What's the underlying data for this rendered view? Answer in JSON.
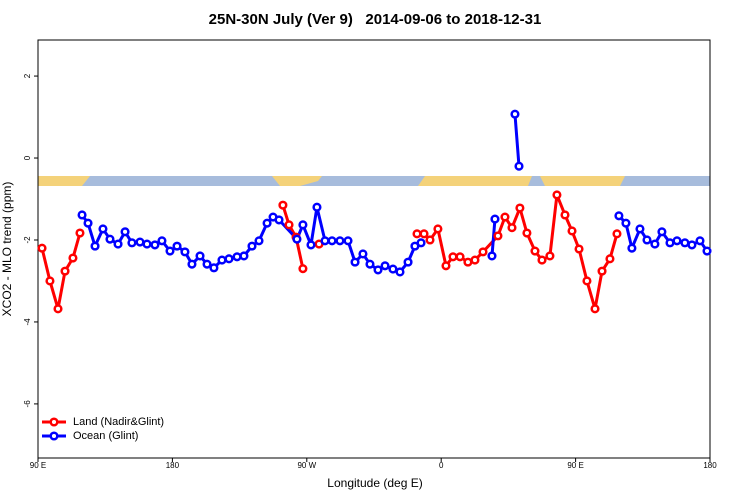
{
  "chart_data": {
    "type": "line",
    "title": "25N-30N July (Ver 9)   2014-09-06 to 2018-12-31",
    "x_label": "Longitude (deg E)",
    "y_label": "XCO2 - MLO trend (ppm)",
    "xlim": [
      90,
      540
    ],
    "xticks": [
      {
        "value": 90,
        "label": "90 E"
      },
      180,
      {
        "value": 270,
        "label": "90 W"
      },
      {
        "value": 360,
        "label": "0"
      },
      {
        "value": 450,
        "label": "90 E"
      },
      {
        "value": 540,
        "label": "180"
      }
    ],
    "ylim": [
      -7.32,
      2.88
    ],
    "yticks": [
      -6,
      -4,
      -2,
      0,
      2
    ],
    "legend": "bottom-left",
    "series": [
      {
        "name": "Land (Nadir&Glint)",
        "color": "#ff0000",
        "x": [
          92.7,
          98,
          103.4,
          108.1,
          113.4,
          118.1,
          null,
          254,
          258.1,
          262.8,
          267.4,
          null,
          278.2,
          null,
          343.8,
          348.5,
          352.5,
          357.8,
          363.2,
          367.9,
          372.6,
          377.9,
          382.6,
          388,
          398,
          402.7,
          407.4,
          412.7,
          417.4,
          422.8,
          427.5,
          432.8,
          437.5,
          442.9,
          447.6,
          452.3,
          457.6,
          463,
          467.7,
          473,
          477.7
        ],
        "values": [
          -2.2,
          -3.0,
          -3.68,
          -2.76,
          -2.44,
          -1.83,
          null,
          -1.15,
          -1.63,
          -1.93,
          -2.7,
          null,
          -2.1,
          null,
          -1.85,
          -1.85,
          -2.0,
          -1.73,
          -2.63,
          -2.41,
          -2.41,
          -2.54,
          -2.49,
          -2.29,
          -1.9,
          -1.44,
          -1.7,
          -1.22,
          -1.83,
          -2.27,
          -2.49,
          -2.39,
          -0.9,
          -1.39,
          -1.78,
          -2.22,
          -3.0,
          -3.68,
          -2.76,
          -2.46,
          -1.85
        ]
      },
      {
        "name": "Ocean (Glint)",
        "color": "#0000ff",
        "x": [
          119.5,
          123.5,
          128.2,
          133.5,
          138.2,
          143.6,
          148.3,
          152.9,
          158.3,
          163,
          168.3,
          173,
          178.4,
          183.1,
          188.4,
          193.1,
          198.5,
          203.2,
          207.8,
          213.2,
          217.9,
          223.3,
          227.9,
          233.3,
          238,
          243.4,
          247.4,
          251.4,
          263.4,
          267.4,
          272.8,
          276.8,
          282.2,
          286.9,
          292.2,
          297.6,
          302.3,
          307.6,
          312.3,
          317.7,
          322.4,
          327.7,
          332.4,
          337.8,
          342.4,
          346.5,
          null,
          394,
          396,
          null,
          409.4,
          412.1,
          null,
          479,
          483.7,
          487.7,
          493.1,
          497.8,
          503.1,
          507.8,
          513.2,
          517.9,
          523.2,
          527.9,
          533.3,
          538
        ],
        "values": [
          -1.39,
          -1.59,
          -2.15,
          -1.73,
          -1.98,
          -2.1,
          -1.8,
          -2.07,
          -2.05,
          -2.1,
          -2.12,
          -2.02,
          -2.27,
          -2.15,
          -2.29,
          -2.59,
          -2.39,
          -2.59,
          -2.68,
          -2.49,
          -2.46,
          -2.41,
          -2.39,
          -2.15,
          -2.02,
          -1.59,
          -1.44,
          -1.51,
          -1.98,
          -1.63,
          -2.12,
          -1.2,
          -2.02,
          -2.02,
          -2.02,
          -2.02,
          -2.54,
          -2.34,
          -2.59,
          -2.73,
          -2.63,
          -2.71,
          -2.78,
          -2.54,
          -2.15,
          -2.07,
          null,
          -2.39,
          -1.49,
          null,
          1.07,
          -0.2,
          null,
          -1.41,
          -1.59,
          -2.2,
          -1.73,
          -2.0,
          -2.1,
          -1.8,
          -2.07,
          -2.02,
          -2.07,
          -2.12,
          -2.02,
          -2.27
        ]
      }
    ]
  }
}
